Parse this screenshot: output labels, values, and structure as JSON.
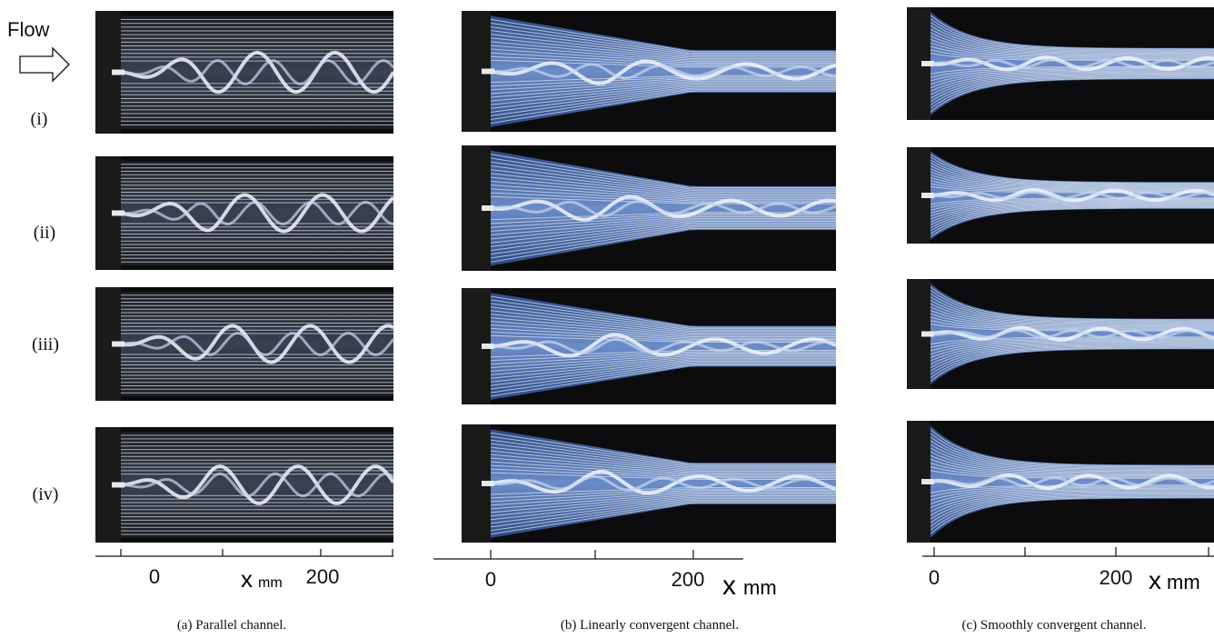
{
  "flow_label": "Flow",
  "rows": [
    "(i)",
    "(ii)",
    "(iii)",
    "(iv)"
  ],
  "panels": [
    {
      "ticks": [
        "0",
        "200"
      ],
      "axis_var": "x",
      "axis_unit": "mm",
      "caption": "(a) Parallel channel."
    },
    {
      "ticks": [
        "0",
        "200"
      ],
      "axis_var": "x",
      "axis_unit": "mm",
      "caption": "(b) Linearly convergent channel."
    },
    {
      "ticks": [
        "0",
        "200"
      ],
      "axis_var": "x",
      "axis_unit": "mm",
      "caption": "(c) Smoothly convergent channel."
    }
  ]
}
